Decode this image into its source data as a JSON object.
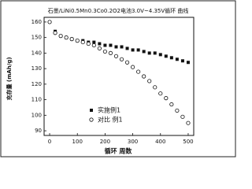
{
  "chart_data": {
    "type": "scatter",
    "title": "石墨/LiNi0.5Mn0.3Co0.2O2电池3.0V~4.35V循环 曲线",
    "x_label": "循环 周数",
    "y_label": "充存量 (mAh/g)",
    "x": [
      0,
      20,
      40,
      60,
      80,
      100,
      120,
      140,
      160,
      180,
      200,
      220,
      240,
      260,
      280,
      300,
      320,
      340,
      360,
      380,
      400,
      420,
      440,
      460,
      480,
      500
    ],
    "series": [
      {
        "name": "实施例1",
        "color": "#111111",
        "marker": "square",
        "values": [
          160,
          154,
          151,
          150,
          149,
          148,
          148,
          147,
          147,
          146,
          145,
          145,
          144,
          144,
          143,
          142,
          142,
          141,
          140,
          140,
          139,
          138,
          137,
          136,
          135,
          134
        ]
      },
      {
        "name": "对比 例1",
        "color": "#111111",
        "marker": "circle",
        "values": [
          160,
          153,
          151,
          150,
          149,
          148,
          147,
          146,
          145,
          143,
          141,
          140,
          138,
          136,
          134,
          131,
          128,
          125,
          122,
          118,
          114,
          111,
          107,
          103,
          99,
          95
        ]
      }
    ],
    "xlim": [
      -20,
      520
    ],
    "xticks": [
      0,
      100,
      200,
      300,
      400,
      500
    ],
    "ylim": [
      87,
      163
    ],
    "yticks": [
      90,
      100,
      110,
      120,
      130,
      140,
      150,
      160
    ],
    "legend": "lower-left"
  }
}
